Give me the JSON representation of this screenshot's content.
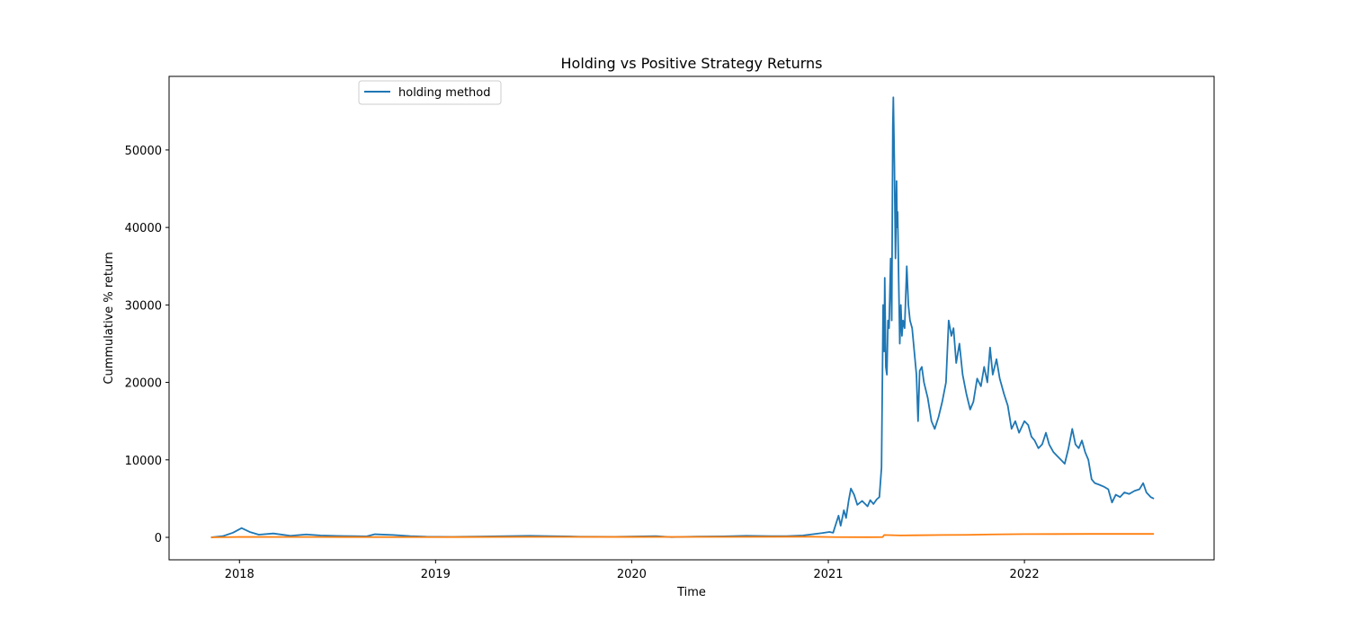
{
  "chart_data": {
    "type": "line",
    "title": "Holding vs Positive Strategy Returns",
    "xlabel": "Time",
    "ylabel": "Cummulative % return",
    "xlim": [
      "2017-08-23",
      "2022-12-20"
    ],
    "ylim": [
      -2900,
      59500
    ],
    "x_ticks": [
      "2018",
      "2019",
      "2020",
      "2021",
      "2022"
    ],
    "x_tick_dates": [
      "2018-01-01",
      "2019-01-01",
      "2020-01-01",
      "2021-01-01",
      "2022-01-01"
    ],
    "y_ticks": [
      0,
      10000,
      20000,
      30000,
      40000,
      50000
    ],
    "grid": false,
    "legend_position": "top-left",
    "series": [
      {
        "name": "holding method",
        "color": "#1f77b4",
        "points": [
          [
            "2017-11-09",
            0
          ],
          [
            "2017-12-01",
            150
          ],
          [
            "2017-12-20",
            600
          ],
          [
            "2018-01-05",
            1200
          ],
          [
            "2018-01-20",
            700
          ],
          [
            "2018-02-06",
            350
          ],
          [
            "2018-03-05",
            500
          ],
          [
            "2018-04-06",
            200
          ],
          [
            "2018-05-05",
            380
          ],
          [
            "2018-06-01",
            250
          ],
          [
            "2018-07-01",
            180
          ],
          [
            "2018-08-01",
            150
          ],
          [
            "2018-08-25",
            120
          ],
          [
            "2018-09-10",
            400
          ],
          [
            "2018-10-15",
            300
          ],
          [
            "2018-11-15",
            150
          ],
          [
            "2018-12-15",
            80
          ],
          [
            "2019-02-01",
            60
          ],
          [
            "2019-04-01",
            110
          ],
          [
            "2019-06-25",
            200
          ],
          [
            "2019-08-01",
            160
          ],
          [
            "2019-09-25",
            90
          ],
          [
            "2019-12-01",
            70
          ],
          [
            "2020-02-15",
            150
          ],
          [
            "2020-03-15",
            30
          ],
          [
            "2020-05-01",
            100
          ],
          [
            "2020-06-20",
            120
          ],
          [
            "2020-08-01",
            200
          ],
          [
            "2020-09-15",
            160
          ],
          [
            "2020-10-15",
            150
          ],
          [
            "2020-11-15",
            250
          ],
          [
            "2020-12-20",
            550
          ],
          [
            "2021-01-03",
            700
          ],
          [
            "2021-01-10",
            600
          ],
          [
            "2021-01-20",
            2800
          ],
          [
            "2021-01-24",
            1500
          ],
          [
            "2021-01-30",
            3500
          ],
          [
            "2021-02-03",
            2500
          ],
          [
            "2021-02-08",
            4800
          ],
          [
            "2021-02-12",
            6300
          ],
          [
            "2021-02-18",
            5500
          ],
          [
            "2021-02-24",
            4200
          ],
          [
            "2021-03-05",
            4700
          ],
          [
            "2021-03-15",
            4000
          ],
          [
            "2021-03-20",
            4800
          ],
          [
            "2021-03-26",
            4300
          ],
          [
            "2021-04-01",
            4900
          ],
          [
            "2021-04-06",
            5200
          ],
          [
            "2021-04-10",
            9000
          ],
          [
            "2021-04-13",
            30000
          ],
          [
            "2021-04-15",
            24000
          ],
          [
            "2021-04-16",
            33500
          ],
          [
            "2021-04-18",
            22000
          ],
          [
            "2021-04-20",
            21000
          ],
          [
            "2021-04-22",
            28000
          ],
          [
            "2021-04-24",
            27000
          ],
          [
            "2021-04-27",
            36000
          ],
          [
            "2021-04-29",
            28000
          ],
          [
            "2021-05-01",
            53000
          ],
          [
            "2021-05-02",
            56800
          ],
          [
            "2021-05-04",
            48000
          ],
          [
            "2021-05-06",
            36000
          ],
          [
            "2021-05-08",
            46000
          ],
          [
            "2021-05-09",
            40000
          ],
          [
            "2021-05-10",
            42000
          ],
          [
            "2021-05-12",
            33000
          ],
          [
            "2021-05-14",
            25000
          ],
          [
            "2021-05-16",
            30000
          ],
          [
            "2021-05-18",
            26000
          ],
          [
            "2021-05-20",
            28000
          ],
          [
            "2021-05-23",
            27000
          ],
          [
            "2021-05-27",
            35000
          ],
          [
            "2021-05-30",
            30000
          ],
          [
            "2021-06-02",
            28000
          ],
          [
            "2021-06-06",
            27000
          ],
          [
            "2021-06-10",
            24000
          ],
          [
            "2021-06-14",
            21000
          ],
          [
            "2021-06-17",
            15000
          ],
          [
            "2021-06-20",
            21500
          ],
          [
            "2021-06-24",
            22000
          ],
          [
            "2021-06-28",
            20000
          ],
          [
            "2021-07-05",
            18000
          ],
          [
            "2021-07-12",
            15000
          ],
          [
            "2021-07-18",
            14000
          ],
          [
            "2021-07-25",
            15500
          ],
          [
            "2021-08-01",
            17500
          ],
          [
            "2021-08-08",
            20000
          ],
          [
            "2021-08-13",
            28000
          ],
          [
            "2021-08-18",
            26000
          ],
          [
            "2021-08-22",
            27000
          ],
          [
            "2021-08-27",
            22500
          ],
          [
            "2021-09-02",
            25000
          ],
          [
            "2021-09-08",
            21000
          ],
          [
            "2021-09-15",
            18500
          ],
          [
            "2021-09-22",
            16500
          ],
          [
            "2021-09-28",
            17500
          ],
          [
            "2021-10-05",
            20500
          ],
          [
            "2021-10-12",
            19500
          ],
          [
            "2021-10-18",
            22000
          ],
          [
            "2021-10-24",
            20000
          ],
          [
            "2021-10-29",
            24500
          ],
          [
            "2021-11-03",
            21000
          ],
          [
            "2021-11-10",
            23000
          ],
          [
            "2021-11-16",
            20500
          ],
          [
            "2021-11-24",
            18500
          ],
          [
            "2021-12-01",
            17000
          ],
          [
            "2021-12-08",
            14000
          ],
          [
            "2021-12-15",
            15000
          ],
          [
            "2021-12-22",
            13500
          ],
          [
            "2022-01-01",
            15000
          ],
          [
            "2022-01-08",
            14500
          ],
          [
            "2022-01-14",
            13000
          ],
          [
            "2022-01-20",
            12500
          ],
          [
            "2022-01-27",
            11500
          ],
          [
            "2022-02-03",
            12000
          ],
          [
            "2022-02-10",
            13500
          ],
          [
            "2022-02-16",
            12000
          ],
          [
            "2022-02-24",
            11000
          ],
          [
            "2022-03-03",
            10500
          ],
          [
            "2022-03-10",
            10000
          ],
          [
            "2022-03-17",
            9500
          ],
          [
            "2022-03-24",
            11500
          ],
          [
            "2022-03-31",
            14000
          ],
          [
            "2022-04-06",
            12000
          ],
          [
            "2022-04-12",
            11500
          ],
          [
            "2022-04-18",
            12500
          ],
          [
            "2022-04-24",
            11000
          ],
          [
            "2022-04-30",
            10000
          ],
          [
            "2022-05-06",
            7500
          ],
          [
            "2022-05-12",
            7000
          ],
          [
            "2022-05-20",
            6800
          ],
          [
            "2022-05-30",
            6500
          ],
          [
            "2022-06-06",
            6200
          ],
          [
            "2022-06-13",
            4500
          ],
          [
            "2022-06-20",
            5500
          ],
          [
            "2022-06-28",
            5200
          ],
          [
            "2022-07-06",
            5800
          ],
          [
            "2022-07-15",
            5600
          ],
          [
            "2022-07-25",
            6000
          ],
          [
            "2022-08-03",
            6200
          ],
          [
            "2022-08-10",
            7000
          ],
          [
            "2022-08-16",
            5800
          ],
          [
            "2022-08-24",
            5200
          ],
          [
            "2022-08-30",
            5000
          ]
        ]
      },
      {
        "name": "",
        "color": "#ff7f0e",
        "points": [
          [
            "2017-11-09",
            0
          ],
          [
            "2018-01-01",
            50
          ],
          [
            "2018-06-01",
            40
          ],
          [
            "2019-01-01",
            30
          ],
          [
            "2019-07-01",
            60
          ],
          [
            "2020-01-01",
            50
          ],
          [
            "2020-07-01",
            60
          ],
          [
            "2020-12-01",
            80
          ],
          [
            "2021-01-15",
            30
          ],
          [
            "2021-03-15",
            20
          ],
          [
            "2021-04-12",
            30
          ],
          [
            "2021-04-15",
            300
          ],
          [
            "2021-05-15",
            250
          ],
          [
            "2021-06-15",
            270
          ],
          [
            "2021-08-01",
            300
          ],
          [
            "2021-09-15",
            320
          ],
          [
            "2021-11-01",
            380
          ],
          [
            "2022-01-01",
            420
          ],
          [
            "2022-03-01",
            430
          ],
          [
            "2022-05-01",
            440
          ],
          [
            "2022-08-30",
            440
          ]
        ]
      }
    ]
  }
}
